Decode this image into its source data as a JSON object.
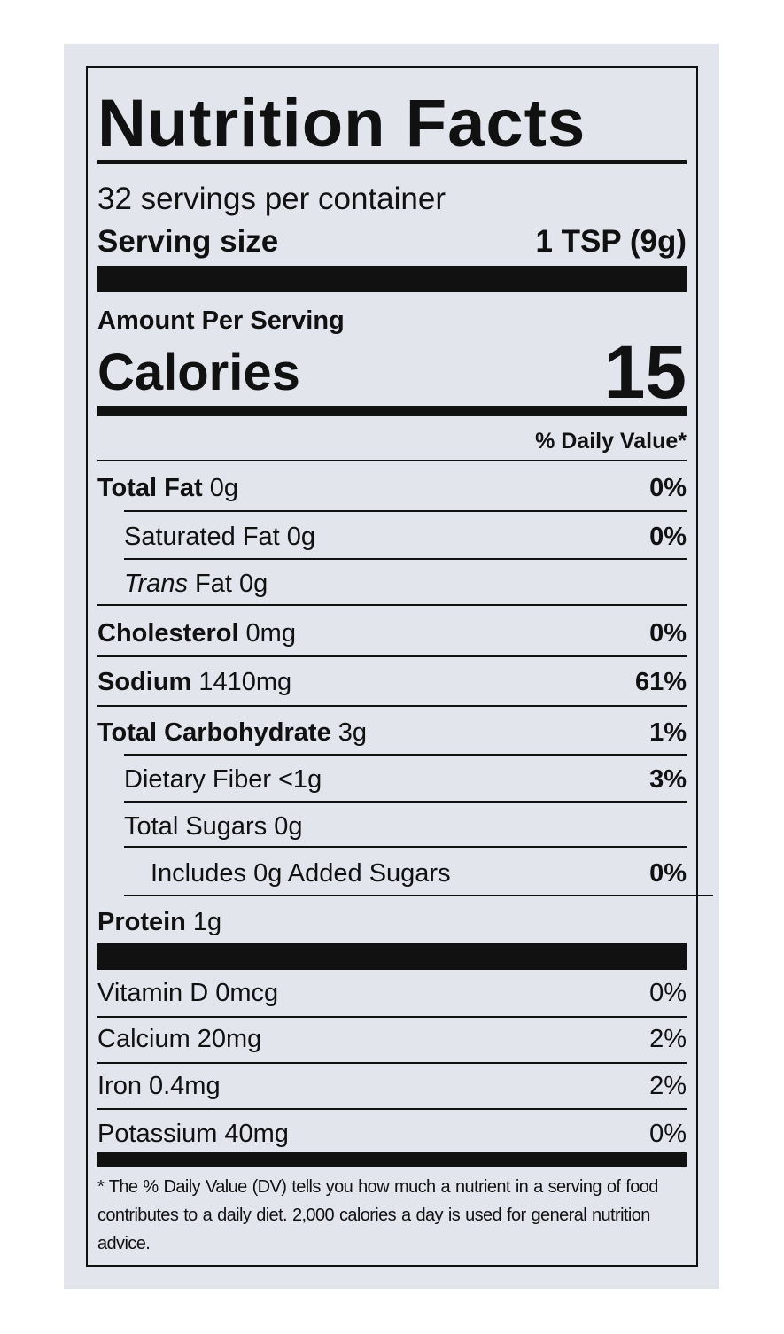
{
  "header": {
    "title": "Nutrition Facts",
    "servings": "32 servings per container",
    "serving_size_label": "Serving size",
    "serving_size_value": "1 TSP (9g)"
  },
  "calories": {
    "amount_per_serving": "Amount Per Serving",
    "label": "Calories",
    "value": "15"
  },
  "dv_header": "% Daily Value*",
  "nutrients": [
    {
      "name": "Total Fat",
      "amount": "0g",
      "dv": "0%"
    },
    {
      "name": "Saturated Fat",
      "amount": "0g",
      "dv": "0%"
    },
    {
      "name_italic": "Trans",
      "name": "Fat",
      "amount": "0g"
    },
    {
      "name": "Cholesterol",
      "amount": "0mg",
      "dv": "0%"
    },
    {
      "name": "Sodium",
      "amount": "1410mg",
      "dv": "61%"
    },
    {
      "name": "Total Carbohydrate",
      "amount": "3g",
      "dv": "1%"
    },
    {
      "name": "Dietary Fiber",
      "amount": "<1g",
      "dv": "3%"
    },
    {
      "name": "Total Sugars",
      "amount": "0g"
    },
    {
      "name": "Includes 0g Added Sugars",
      "dv": "0%"
    },
    {
      "name": "Protein",
      "amount": "1g"
    }
  ],
  "vitamins": [
    {
      "name": "Vitamin D",
      "amount": "0mcg",
      "dv": "0%"
    },
    {
      "name": "Calcium",
      "amount": "20mg",
      "dv": "2%"
    },
    {
      "name": "Iron",
      "amount": "0.4mg",
      "dv": "2%"
    },
    {
      "name": "Potassium",
      "amount": "40mg",
      "dv": "0%"
    }
  ],
  "footnote": "* The % Daily Value (DV) tells you how much a nutrient in a serving of food contributes to a daily diet. 2,000 calories a day is used for general nutrition advice."
}
